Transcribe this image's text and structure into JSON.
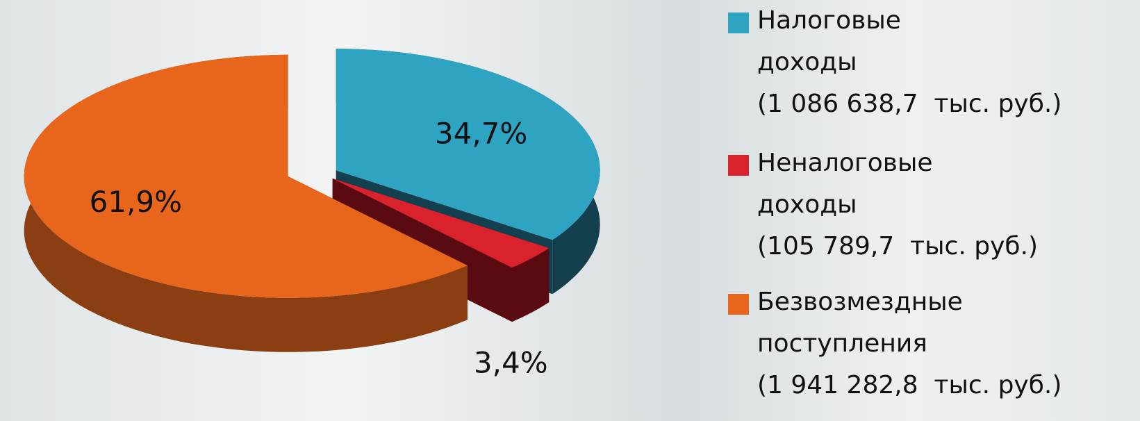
{
  "chart_data": {
    "type": "pie",
    "categories": [
      "Налоговые доходы",
      "Неналоговые доходы",
      "Безвозмездные поступления"
    ],
    "values": [
      34.7,
      3.4,
      61.9
    ],
    "value_labels": [
      "34,7%",
      "3,4%",
      "61,9%"
    ],
    "amount_labels": [
      "(1 086 638,7  тыс. руб.)",
      "(105 789,7  тыс. руб.)",
      "(1 941 282,8  тыс. руб.)"
    ],
    "colors": [
      "#2ea3c2",
      "#d9222b",
      "#e8651c"
    ],
    "side_colors": [
      "#143f4e",
      "#5a0b12",
      "#8a3e12"
    ]
  }
}
